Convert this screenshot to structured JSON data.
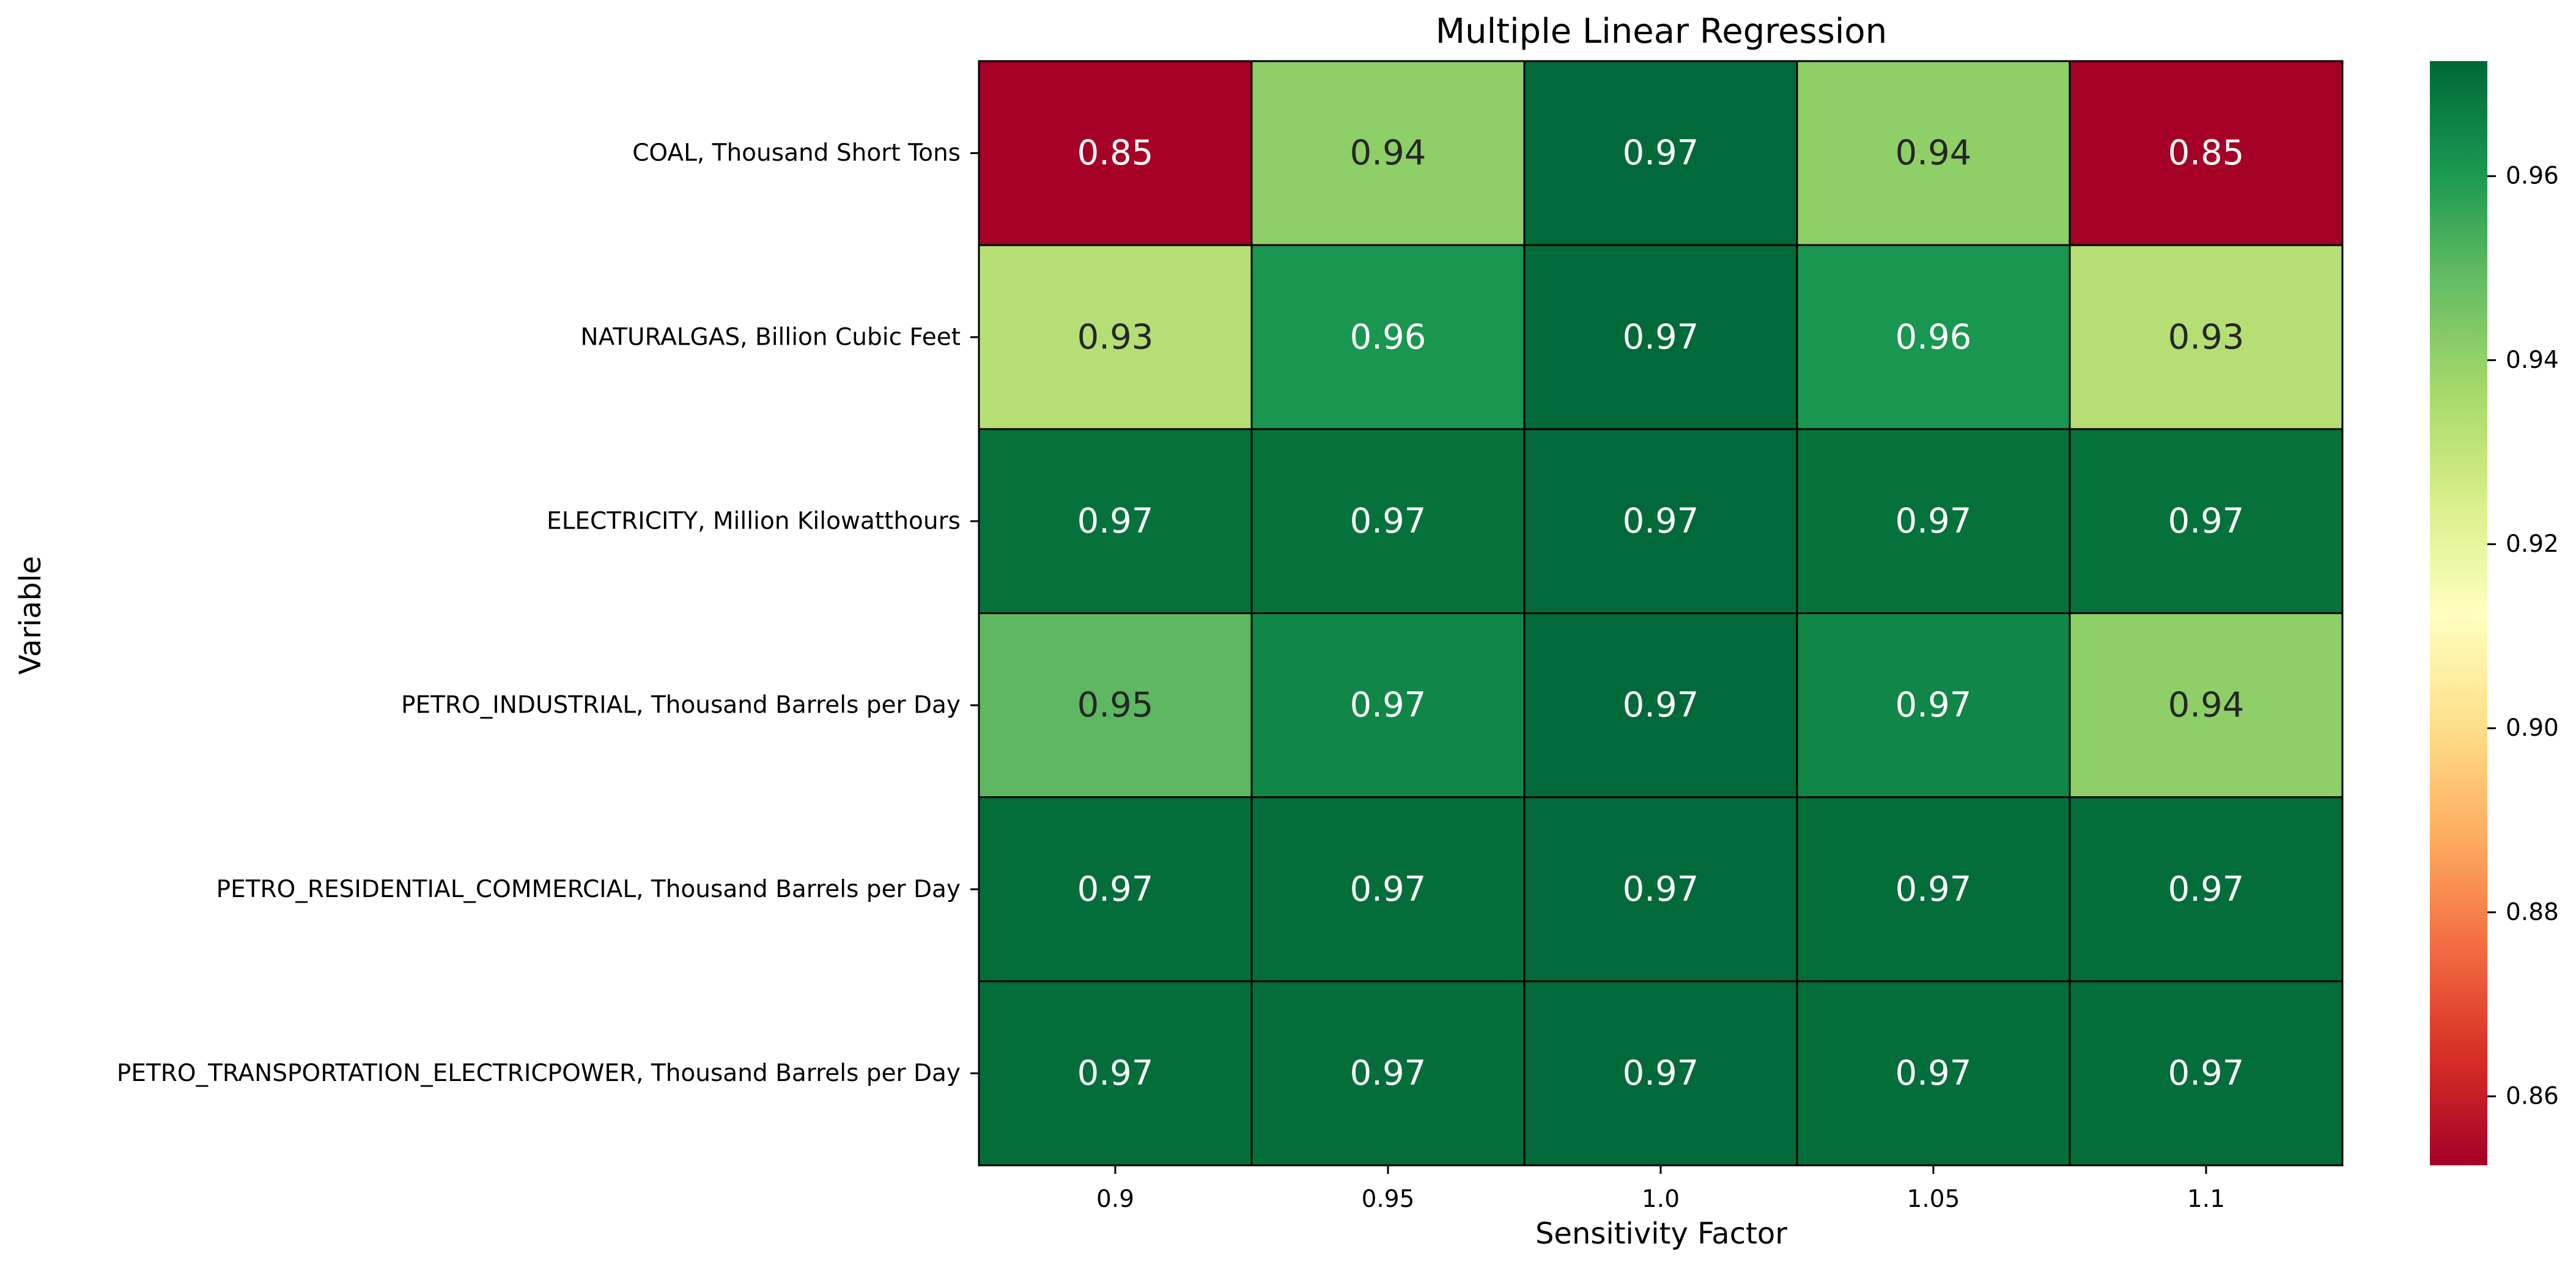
{
  "chart_data": {
    "type": "heatmap",
    "title": "Multiple Linear Regression",
    "xlabel": "Sensitivity Factor",
    "ylabel": "Variable",
    "x_categories": [
      "0.9",
      "0.95",
      "1.0",
      "1.05",
      "1.1"
    ],
    "y_categories": [
      "COAL, Thousand Short Tons",
      "NATURALGAS, Billion Cubic Feet",
      "ELECTRICITY, Million Kilowatthours",
      "PETRO_INDUSTRIAL, Thousand Barrels per Day",
      "PETRO_RESIDENTIAL_COMMERCIAL, Thousand Barrels per Day",
      "PETRO_TRANSPORTATION_ELECTRICPOWER, Thousand Barrels per Day"
    ],
    "values": [
      [
        0.8525,
        0.941,
        0.972,
        0.941,
        0.8525
      ],
      [
        0.933,
        0.961,
        0.972,
        0.961,
        0.933
      ],
      [
        0.97,
        0.97,
        0.972,
        0.97,
        0.97
      ],
      [
        0.95,
        0.965,
        0.972,
        0.965,
        0.941
      ],
      [
        0.971,
        0.971,
        0.972,
        0.971,
        0.971
      ],
      [
        0.971,
        0.971,
        0.972,
        0.971,
        0.971
      ]
    ],
    "annotations": [
      [
        "0.85",
        "0.94",
        "0.97",
        "0.94",
        "0.85"
      ],
      [
        "0.93",
        "0.96",
        "0.97",
        "0.96",
        "0.93"
      ],
      [
        "0.97",
        "0.97",
        "0.97",
        "0.97",
        "0.97"
      ],
      [
        "0.95",
        "0.97",
        "0.97",
        "0.97",
        "0.94"
      ],
      [
        "0.97",
        "0.97",
        "0.97",
        "0.97",
        "0.97"
      ],
      [
        "0.97",
        "0.97",
        "0.97",
        "0.97",
        "0.97"
      ]
    ],
    "colormap": "RdYlGn",
    "vmin": 0.8525,
    "vmax": 0.9725,
    "colorbar_ticks": [
      {
        "value": 0.86,
        "label": "0.86"
      },
      {
        "value": 0.88,
        "label": "0.88"
      },
      {
        "value": 0.9,
        "label": "0.90"
      },
      {
        "value": 0.92,
        "label": "0.92"
      },
      {
        "value": 0.94,
        "label": "0.94"
      },
      {
        "value": 0.96,
        "label": "0.96"
      }
    ],
    "cell_border_color": "#000000"
  }
}
